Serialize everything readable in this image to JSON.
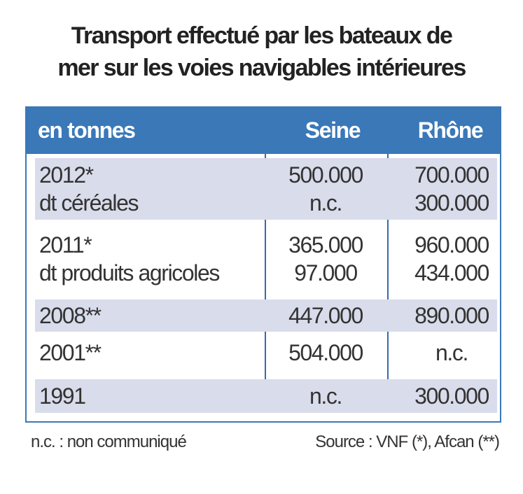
{
  "title": [
    "Transport effectué par les bateaux de",
    "mer sur les voies navigables intérieures"
  ],
  "header": [
    "en tonnes",
    "Seine",
    "Rhône"
  ],
  "rows": [
    {
      "label": [
        "2012*",
        "dt céréales"
      ],
      "seine": [
        "500.000",
        "n.c."
      ],
      "rhone": [
        "700.000",
        "300.000"
      ]
    },
    {
      "label": [
        "2011*",
        "dt produits agricoles"
      ],
      "seine": [
        "365.000",
        "97.000"
      ],
      "rhone": [
        "960.000",
        "434.000"
      ]
    },
    {
      "label": [
        "2008**"
      ],
      "seine": [
        "447.000"
      ],
      "rhone": [
        "890.000"
      ]
    },
    {
      "label": [
        "2001**"
      ],
      "seine": [
        "504.000"
      ],
      "rhone": [
        "n.c."
      ]
    },
    {
      "label": [
        "1991"
      ],
      "seine": [
        "n.c."
      ],
      "rhone": [
        "300.000"
      ]
    }
  ],
  "footer": {
    "note": "n.c. : non communiqué",
    "source": "Source : VNF (*), Afcan (**)"
  },
  "colors": {
    "header": "#3a78b8",
    "shade": "#d9dcea"
  }
}
